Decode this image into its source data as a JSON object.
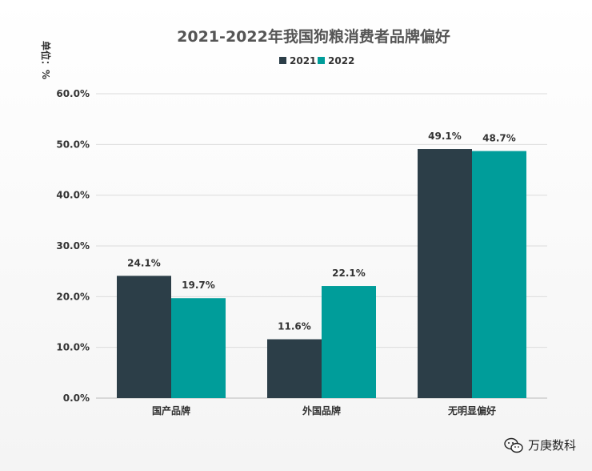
{
  "chart_data": {
    "type": "bar",
    "title": "2021-2022年我国狗粮消费者品牌偏好",
    "unit_label": "单位：%",
    "categories": [
      "国产品牌",
      "外国品牌",
      "无明显偏好"
    ],
    "series": [
      {
        "name": "2021",
        "values": [
          24.1,
          11.6,
          49.1
        ],
        "color": "#2c3e48"
      },
      {
        "name": "2022",
        "values": [
          19.7,
          22.1,
          48.7
        ],
        "color": "#009d9a"
      }
    ],
    "value_labels": [
      [
        "24.1%",
        "11.6%",
        "49.1%"
      ],
      [
        "19.7%",
        "22.1%",
        "48.7%"
      ]
    ],
    "y_ticks": [
      0,
      10,
      20,
      30,
      40,
      50,
      60
    ],
    "y_tick_labels": [
      "0.0%",
      "10.0%",
      "20.0%",
      "30.0%",
      "40.0%",
      "50.0%",
      "60.0%"
    ],
    "ylim": [
      0,
      60
    ],
    "legend_position": "top-center",
    "grid": true
  },
  "watermark": {
    "text": "万庚数科",
    "icon": "wechat-icon"
  }
}
